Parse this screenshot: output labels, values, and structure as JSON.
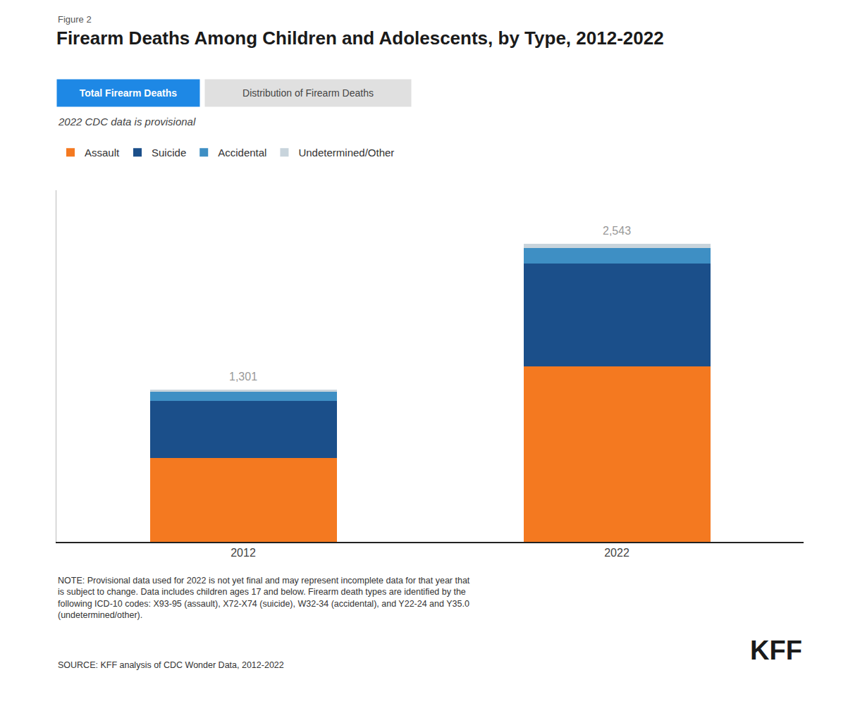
{
  "chart_data": {
    "type": "bar",
    "title": "Firearm Deaths Among Children and Adolescents, by Type, 2012-2022",
    "subtitle": "2022 CDC data is provisional",
    "categories": [
      "2012",
      "2022"
    ],
    "series": [
      {
        "name": "Assault",
        "color": "#F47920",
        "values": [
          715,
          1495
        ]
      },
      {
        "name": "Suicide",
        "color": "#1B4F8A",
        "values": [
          490,
          880
        ]
      },
      {
        "name": "Accidental",
        "color": "#3E8FC4",
        "values": [
          78,
          130
        ]
      },
      {
        "name": "Undetermined/Other",
        "color": "#C8D4DC",
        "values": [
          18,
          38
        ]
      }
    ],
    "stacked": true,
    "ylim": [
      0,
      3000
    ],
    "yticks": [],
    "tick_labels": "x",
    "grid": false,
    "legend": "upper left",
    "annotations": [
      {
        "x": "2012",
        "y": 1301,
        "text": "1,301"
      },
      {
        "x": "2022",
        "y": 2543,
        "text": "2,543"
      },
      {
        "text": "Figure 2"
      },
      {
        "text": "Total Firearm Deaths"
      },
      {
        "text": "Distribution of Firearm Deaths"
      },
      {
        "text": "NOTE: Provisional data used for 2022 is not yet final and may represent incomplete data for that year that\nis subject to change. Data includes children ages 17 and below. Firearm death types are identified by the\nfollowing ICD-10 codes: X93-95 (assault), X72-X74 (suicide), W32-34 (accidental), and Y22-24 and Y35.0\n(undetermined/other)."
      },
      {
        "text": "SOURCE: KFF analysis of CDC Wonder Data, 2012-2022"
      },
      {
        "text": "KFF"
      }
    ]
  }
}
